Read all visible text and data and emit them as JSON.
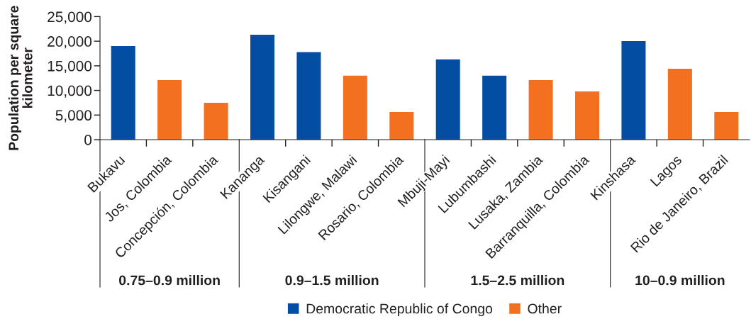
{
  "chart_data": [
    {
      "type": "bar",
      "categories": [
        "Bukavu",
        "Jos, Colombia",
        "Concepción, Colombia"
      ],
      "xlabel": "0.75–0.9 million",
      "ylabel": "Population per square kilometer",
      "ylim": [
        0,
        25000
      ],
      "yticks": [
        0,
        {
          "value": 5000,
          "label": "5,000"
        },
        {
          "value": 10000,
          "label": "10,000"
        },
        {
          "value": 15000,
          "label": "15,000"
        },
        {
          "value": 20000,
          "label": "20,000"
        },
        {
          "value": 25000,
          "label": "25,000"
        }
      ],
      "stacked": true,
      "legend": "bottom",
      "series": [
        {
          "name": "Democratic Republic of Congo",
          "color": "#034ea2",
          "values": [
            19000,
            null,
            null
          ]
        },
        {
          "name": "Other",
          "color": "#f37021",
          "values": [
            null,
            12100,
            7500
          ]
        }
      ]
    },
    {
      "type": "bar",
      "categories": [
        "Kananga",
        "Kisangani",
        "Lilongwe, Malawi",
        "Rosario, Colombia"
      ],
      "xlabel": "0.9–1.5 million",
      "ylim": [
        0,
        25000
      ],
      "tick_labels": "x",
      "stacked": true,
      "series": [
        {
          "name": "Democratic Republic of Congo",
          "color": "#034ea2",
          "values": [
            21300,
            17800,
            null,
            null
          ]
        },
        {
          "name": "Other",
          "color": "#f37021",
          "values": [
            null,
            null,
            13000,
            5600
          ]
        }
      ]
    },
    {
      "type": "bar",
      "categories": [
        "Mbuji-Mayi",
        "Lubumbashi",
        "Lusaka, Zambia",
        "Barranquilla, Colombia"
      ],
      "xlabel": "1.5–2.5 million",
      "ylim": [
        0,
        25000
      ],
      "tick_labels": "x",
      "stacked": true,
      "series": [
        {
          "name": "Democratic Republic of Congo",
          "color": "#034ea2",
          "values": [
            16300,
            13000,
            null,
            null
          ]
        },
        {
          "name": "Other",
          "color": "#f37021",
          "values": [
            null,
            null,
            12100,
            9800
          ]
        }
      ]
    },
    {
      "type": "bar",
      "categories": [
        "Kinshasa",
        "Lagos",
        "Rio de Janeiro, Brazil"
      ],
      "xlabel": "10–0.9 million",
      "ylim": [
        0,
        25000
      ],
      "tick_labels": "x",
      "stacked": true,
      "series": [
        {
          "name": "Democratic Republic of Congo",
          "color": "#034ea2",
          "values": [
            20000,
            null,
            null
          ]
        },
        {
          "name": "Other",
          "color": "#f37021",
          "values": [
            null,
            14400,
            5600
          ]
        }
      ]
    }
  ]
}
